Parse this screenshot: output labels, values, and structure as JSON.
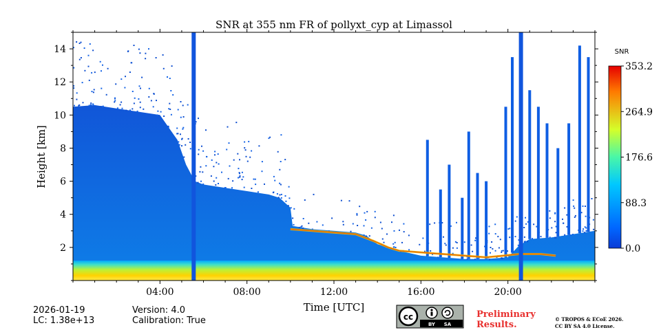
{
  "chart_data": {
    "type": "heatmap",
    "title": "SNR at 355 nm FR of pollyxt_cyp at Limassol",
    "xlabel": "Time [UTC]",
    "ylabel": "Height [km]",
    "x_unit": "hours",
    "xlim": [
      0,
      24
    ],
    "ylim": [
      0,
      15
    ],
    "x_ticks": [
      {
        "value": 4,
        "label": "04:00"
      },
      {
        "value": 8,
        "label": "08:00"
      },
      {
        "value": 12,
        "label": "12:00"
      },
      {
        "value": 16,
        "label": "16:00"
      },
      {
        "value": 20,
        "label": "20:00"
      }
    ],
    "y_ticks": [
      {
        "value": 2,
        "label": "2"
      },
      {
        "value": 4,
        "label": "4"
      },
      {
        "value": 6,
        "label": "6"
      },
      {
        "value": 8,
        "label": "8"
      },
      {
        "value": 10,
        "label": "10"
      },
      {
        "value": 12,
        "label": "12"
      },
      {
        "value": 14,
        "label": "14"
      }
    ],
    "colorbar": {
      "label": "SNR",
      "min": 0.0,
      "max": 353.2,
      "ticks": [
        {
          "value": 0.0,
          "label": "0.0"
        },
        {
          "value": 88.3,
          "label": "88.3"
        },
        {
          "value": 176.6,
          "label": "176.6"
        },
        {
          "value": 264.9,
          "label": "264.9"
        },
        {
          "value": 353.2,
          "label": "353.2"
        }
      ]
    },
    "signal_top_km": [
      [
        0,
        10.5
      ],
      [
        1,
        10.6
      ],
      [
        2,
        10.4
      ],
      [
        3,
        10.2
      ],
      [
        4,
        10.0
      ],
      [
        4.8,
        8.5
      ],
      [
        5.2,
        7.0
      ],
      [
        5.6,
        6.0
      ],
      [
        6,
        5.8
      ],
      [
        7,
        5.6
      ],
      [
        8,
        5.4
      ],
      [
        9,
        5.2
      ],
      [
        9.5,
        5.0
      ],
      [
        10,
        4.4
      ],
      [
        10.1,
        3.3
      ],
      [
        11,
        3.1
      ],
      [
        12,
        3.0
      ],
      [
        13,
        2.9
      ],
      [
        13.5,
        2.7
      ],
      [
        14,
        2.2
      ],
      [
        15,
        1.8
      ],
      [
        16,
        1.5
      ],
      [
        17,
        1.4
      ],
      [
        18,
        1.3
      ],
      [
        19,
        1.3
      ],
      [
        20,
        1.4
      ],
      [
        20.5,
        2.1
      ],
      [
        21,
        2.5
      ],
      [
        22,
        2.6
      ],
      [
        23,
        2.8
      ],
      [
        24,
        3.0
      ]
    ],
    "gaps_hours": [
      5.55,
      20.6
    ],
    "high_snr_layer_km": [
      0.1,
      0.5
    ],
    "aerosol_layer_top_km": [
      [
        10,
        3.1
      ],
      [
        11,
        3.0
      ],
      [
        12,
        2.9
      ],
      [
        13,
        2.8
      ],
      [
        13.8,
        2.4
      ],
      [
        14.5,
        2.0
      ],
      [
        15,
        1.8
      ],
      [
        16,
        1.7
      ],
      [
        17,
        1.6
      ],
      [
        18,
        1.5
      ],
      [
        19,
        1.4
      ],
      [
        19.8,
        1.5
      ],
      [
        20.5,
        1.6
      ],
      [
        21.5,
        1.6
      ],
      [
        22.2,
        1.5
      ]
    ],
    "cloud_streaks": [
      {
        "t": 16.3,
        "top": 8.5
      },
      {
        "t": 16.9,
        "top": 5.5
      },
      {
        "t": 17.3,
        "top": 7.0
      },
      {
        "t": 17.9,
        "top": 5.0
      },
      {
        "t": 18.2,
        "top": 9.0
      },
      {
        "t": 18.6,
        "top": 6.5
      },
      {
        "t": 19.0,
        "top": 6.0
      },
      {
        "t": 19.9,
        "top": 10.5
      },
      {
        "t": 20.2,
        "top": 13.5
      },
      {
        "t": 21.0,
        "top": 11.5
      },
      {
        "t": 21.4,
        "top": 10.5
      },
      {
        "t": 21.8,
        "top": 9.5
      },
      {
        "t": 22.3,
        "top": 8.0
      },
      {
        "t": 22.8,
        "top": 9.5
      },
      {
        "t": 23.3,
        "top": 14.2
      },
      {
        "t": 23.7,
        "top": 13.5
      }
    ]
  },
  "footer": {
    "date": "2026-01-19",
    "lc": "LC: 1.38e+13",
    "version": "Version: 4.0",
    "calibration": "Calibration: True",
    "preliminary": "Preliminary",
    "results": "Results.",
    "copyright": "© TROPOS & ECoE 2026.",
    "license": "CC BY SA 4.0 License.",
    "cc_logo": {
      "cc": "cc",
      "by": "BY",
      "sa": "SA"
    }
  },
  "colors": {
    "preliminary": "#e8302e",
    "background": "#ffffff"
  }
}
